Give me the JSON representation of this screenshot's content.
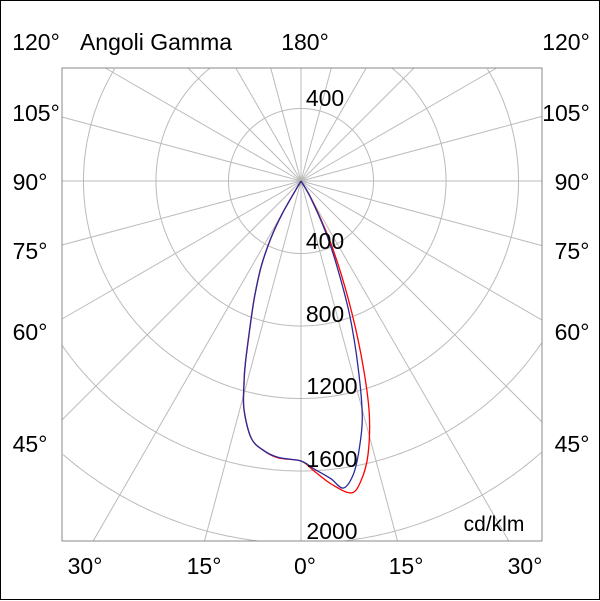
{
  "chart_data": {
    "type": "polar-line",
    "title": "Angoli Gamma",
    "unit": "cd/klm",
    "radial_ticks": [
      "400",
      "800",
      "1200",
      "1600",
      "2000"
    ],
    "radial_tick_top": "400",
    "radial_step": 400,
    "angle_labels": {
      "top": "180°",
      "left": [
        "120°",
        "105°",
        "90°",
        "75°",
        "60°",
        "45°"
      ],
      "right": [
        "120°",
        "105°",
        "90°",
        "75°",
        "60°",
        "45°"
      ],
      "bottom": [
        "30°",
        "15°",
        "0°",
        "15°",
        "30°"
      ]
    },
    "grid": true,
    "angle_grid_step_deg": 15,
    "series": [
      {
        "color": "#ff0000",
        "gamma_deg": [
          -35,
          -30,
          -27.8,
          -25,
          -22,
          -19.7,
          -17,
          -15.7,
          -14,
          -11,
          -8,
          -4.7,
          0,
          2.6,
          5.7,
          9.1,
          11.3,
          13.8,
          16.5,
          19.1,
          21.9,
          25.5,
          30,
          35
        ],
        "values": [
          0,
          200,
          355,
          520,
          680,
          821,
          1050,
          1163,
          1300,
          1444,
          1500,
          1533,
          1545,
          1602,
          1680,
          1743,
          1688,
          1551,
          1323,
          1010,
          695,
          386,
          120,
          0
        ]
      },
      {
        "color": "#2a2a9a",
        "gamma_deg": [
          -35,
          -30,
          -27.8,
          -25,
          -22,
          -19.7,
          -17,
          -15.7,
          -14,
          -11,
          -8,
          -4.7,
          0,
          2.6,
          5.7,
          7.8,
          10,
          12,
          14.5,
          17,
          20,
          23,
          26,
          30,
          35
        ],
        "values": [
          0,
          200,
          355,
          520,
          680,
          821,
          1050,
          1163,
          1300,
          1444,
          1500,
          1530,
          1545,
          1590,
          1650,
          1710,
          1650,
          1530,
          1350,
          1080,
          780,
          500,
          300,
          100,
          0
        ]
      }
    ]
  }
}
